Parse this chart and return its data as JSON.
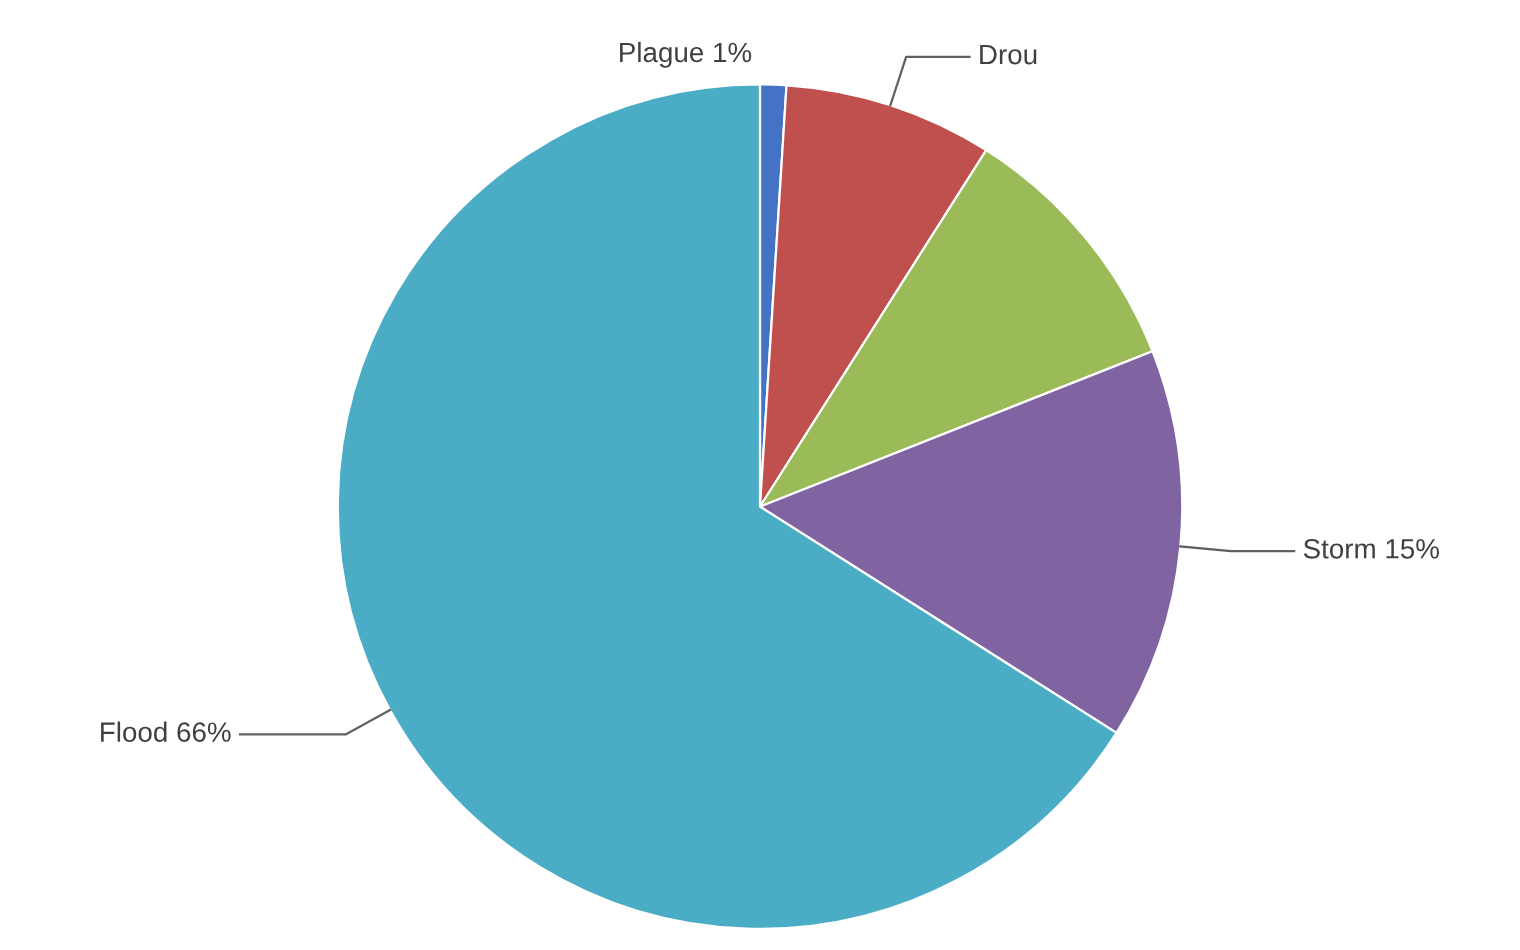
{
  "chart_data": {
    "type": "pie",
    "categories": [
      "Plague",
      "Drou",
      null,
      "Storm",
      "Flood"
    ],
    "values": [
      1,
      8,
      10,
      15,
      66
    ],
    "value_labels": [
      "1%",
      null,
      null,
      "15%",
      "66%"
    ],
    "colors": [
      "#4472c4",
      "#c0504d",
      "#9bbb59",
      "#8064a2",
      "#4bacc6"
    ]
  }
}
